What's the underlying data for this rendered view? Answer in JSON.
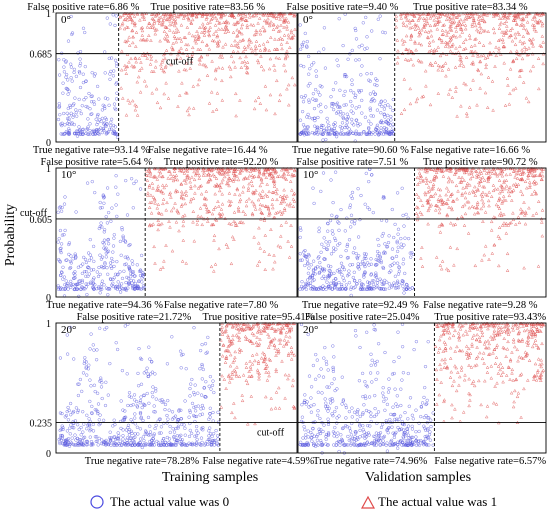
{
  "figure": {
    "ylabel": "Probability",
    "xlabel_left": "Training samples",
    "xlabel_right": "Validation samples",
    "legend": [
      {
        "label": "The actual value was 0",
        "marker": "circle",
        "color": "#4a4ae0"
      },
      {
        "label": "The actual value was 1",
        "marker": "triangle",
        "color": "#e04a4a"
      }
    ],
    "cutoff_label": "cut-off",
    "colors": {
      "class0": "#5b5bde",
      "class1": "#e05555",
      "grid": "#000000"
    }
  },
  "chart_data": [
    {
      "type": "scatter",
      "angle": "0°",
      "subset": "Training",
      "cutoff": 0.685,
      "cutoff_label": "0.685",
      "ytick_top": "1",
      "ytick_bottom": "0",
      "ylim": [
        0,
        1
      ],
      "false_positive_rate": "False positive rate=6.86 %",
      "true_positive_rate": "True positive rate=83.56 %",
      "true_negative_rate": "True negative rate=93.14 %",
      "false_negative_rate": "False negative rate=16.44 %",
      "split_fraction": 0.26
    },
    {
      "type": "scatter",
      "angle": "0°",
      "subset": "Validation",
      "cutoff": 0.685,
      "cutoff_label": "",
      "ytick_top": "1",
      "ytick_bottom": "0",
      "ylim": [
        0,
        1
      ],
      "false_positive_rate": "False positive rate=9.40 %",
      "true_positive_rate": "True positive rate=83.34 %",
      "true_negative_rate": "True negative rate=90.60 %",
      "false_negative_rate": "False negative rate=16.66 %",
      "split_fraction": 0.39
    },
    {
      "type": "scatter",
      "angle": "10°",
      "subset": "Training",
      "cutoff": 0.605,
      "cutoff_label": "0.605",
      "ytick_top": "1",
      "ytick_bottom": "0",
      "ylim": [
        0,
        1
      ],
      "false_positive_rate": "False positive rate=5.64 %",
      "true_positive_rate": "True positive rate=92.20 %",
      "true_negative_rate": "True negative rate=94.36 %",
      "false_negative_rate": "False negative rate=7.80 %",
      "split_fraction": 0.37
    },
    {
      "type": "scatter",
      "angle": "10°",
      "subset": "Validation",
      "cutoff": 0.605,
      "cutoff_label": "",
      "ytick_top": "1",
      "ytick_bottom": "0",
      "ylim": [
        0,
        1
      ],
      "false_positive_rate": "False positive rate=7.51 %",
      "true_positive_rate": "True positive rate=90.72 %",
      "true_negative_rate": "True negative rate=92.49 %",
      "false_negative_rate": "False negative rate=9.28 %",
      "split_fraction": 0.47
    },
    {
      "type": "scatter",
      "angle": "20°",
      "subset": "Training",
      "cutoff": 0.235,
      "cutoff_label": "0.235",
      "ytick_top": "1",
      "ytick_bottom": "0",
      "ylim": [
        0,
        1
      ],
      "false_positive_rate": "False positive rate=21.72%",
      "true_positive_rate": "True positive rate=95.41%",
      "true_negative_rate": "True negative rate=78.28%",
      "false_negative_rate": "False negative rate=4.59%",
      "split_fraction": 0.68
    },
    {
      "type": "scatter",
      "angle": "20°",
      "subset": "Validation",
      "cutoff": 0.235,
      "cutoff_label": "",
      "ytick_top": "1",
      "ytick_bottom": "0",
      "ylim": [
        0,
        1
      ],
      "false_positive_rate": "False positive rate=25.04%",
      "true_positive_rate": "True positive rate=93.43%",
      "true_negative_rate": "True negative rate=74.96%",
      "false_negative_rate": "False negative rate=6.57%",
      "split_fraction": 0.55
    }
  ]
}
